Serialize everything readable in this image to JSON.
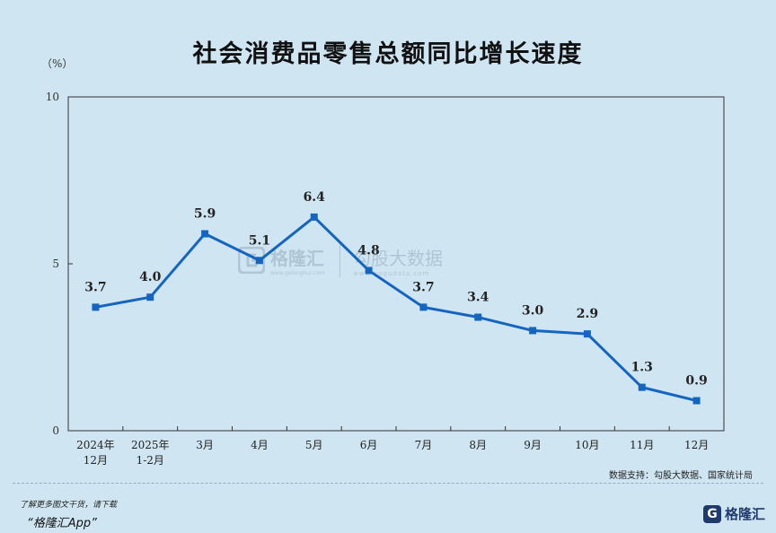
{
  "title": "社会消费品零售总额同比增长速度",
  "unit": "（%）",
  "source": "数据支持：勾股大数据、国家统计局",
  "footer": {
    "promo_line1": "了解更多图文干货，请下载",
    "promo_line2": "“格隆汇App”",
    "brand": "格隆汇",
    "brand_mark": "G"
  },
  "watermarks": {
    "left_text": "格隆汇",
    "left_sub": "www.gelonghui.com",
    "right_text": "勾股大数据",
    "right_sub": "www.gogudata.com"
  },
  "colors": {
    "line": "#1565c0",
    "background": "#cfe6f2",
    "axis": "#333333"
  },
  "chart_data": {
    "type": "line",
    "title": "社会消费品零售总额同比增长速度",
    "ylabel": "（%）",
    "ylim": [
      0,
      10
    ],
    "yticks": [
      0,
      5,
      10
    ],
    "grid": false,
    "categories": [
      [
        "2024年",
        "12月"
      ],
      [
        "2025年",
        "1-2月"
      ],
      [
        "3月"
      ],
      [
        "4月"
      ],
      [
        "5月"
      ],
      [
        "6月"
      ],
      [
        "7月"
      ],
      [
        "8月"
      ],
      [
        "9月"
      ],
      [
        "10月"
      ],
      [
        "11月"
      ],
      [
        "12月"
      ]
    ],
    "series": [
      {
        "values": [
          3.7,
          4.0,
          5.9,
          5.1,
          6.4,
          4.8,
          3.7,
          3.4,
          3.0,
          2.9,
          1.3,
          0.9
        ],
        "labels": [
          "3.7",
          "4.0",
          "5.9",
          "5.1",
          "6.4",
          "4.8",
          "3.7",
          "3.4",
          "3.0",
          "2.9",
          "1.3",
          "0.9"
        ]
      }
    ]
  }
}
